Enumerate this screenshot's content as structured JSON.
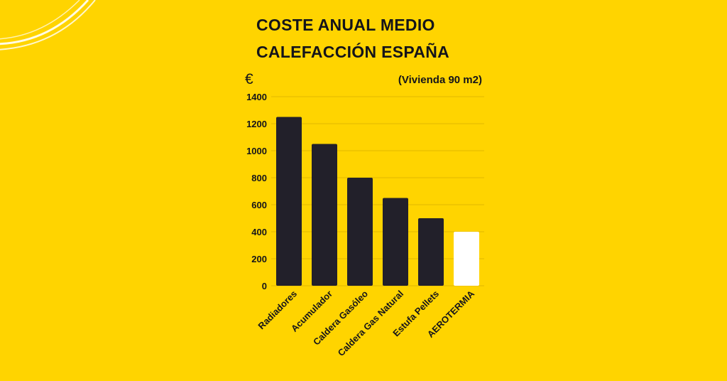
{
  "title_lines": [
    "COSTE ANUAL MEDIO",
    "CALEFACCIÓN ESPAÑA"
  ],
  "unit": "€",
  "subtitle": "(Vivienda 90 m2)",
  "colors": {
    "background": "#FFD400",
    "bar_default": "#22202a",
    "bar_highlight": "#FFFFFF",
    "text": "#14141a",
    "grid": "#e0b800"
  },
  "chart_data": {
    "type": "bar",
    "title": "COSTE ANUAL MEDIO CALEFACCIÓN ESPAÑA",
    "subtitle": "(Vivienda 90 m2)",
    "ylabel": "€",
    "xlabel": "",
    "categories": [
      "Radiadores",
      "Acumulador",
      "Caldera Gasóleo",
      "Caldera Gas Natural",
      "Estufa Pellets",
      "AEROTERMIA"
    ],
    "values": [
      1250,
      1050,
      800,
      650,
      500,
      400
    ],
    "highlight": "AEROTERMIA",
    "ylim": [
      0,
      1400
    ],
    "yticks": [
      0,
      200,
      400,
      600,
      800,
      1000,
      1200,
      1400
    ],
    "grid": true,
    "legend": "none"
  }
}
